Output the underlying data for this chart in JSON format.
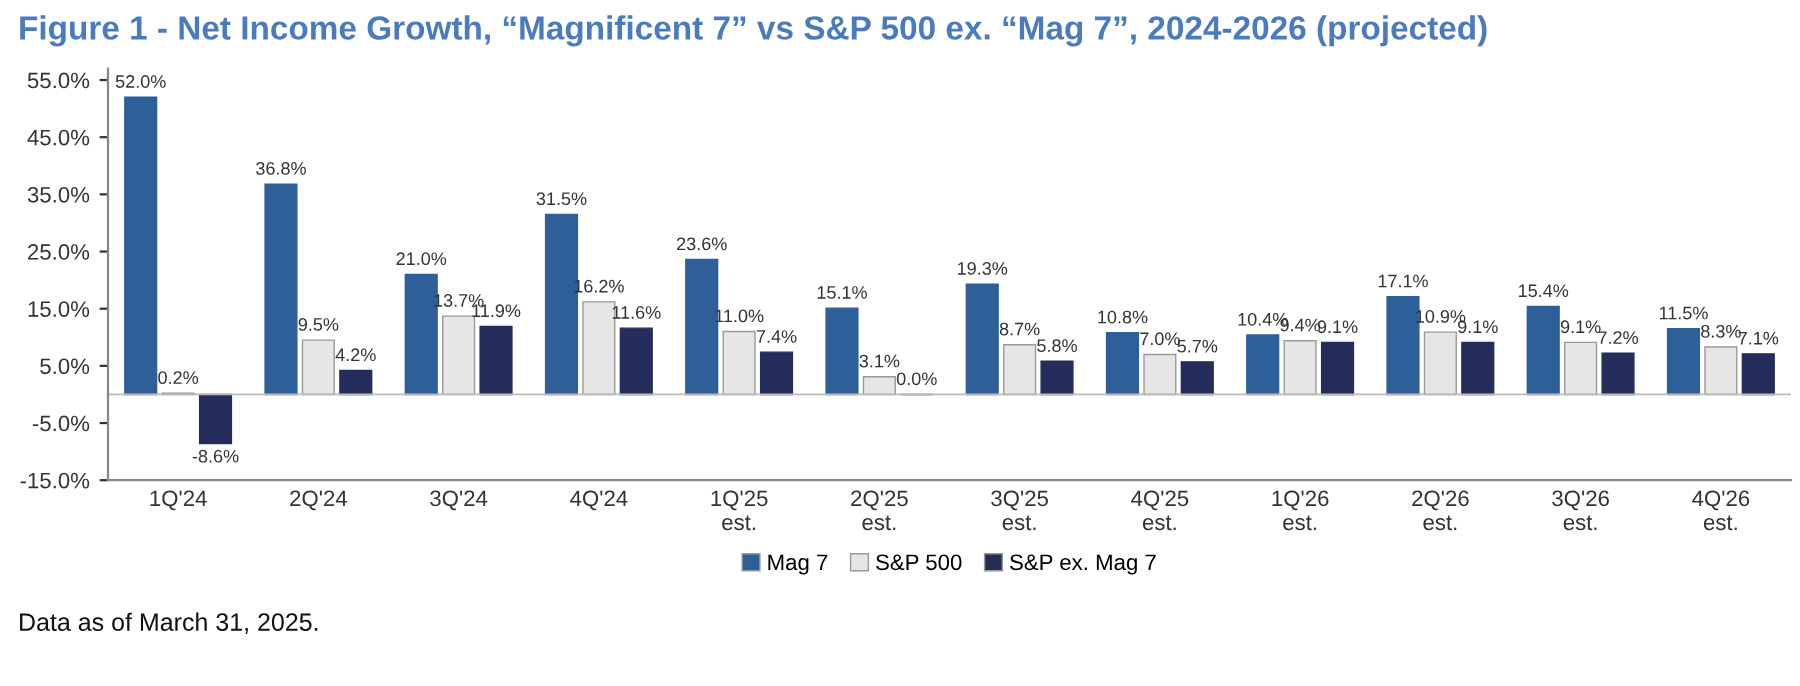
{
  "chart_data": {
    "type": "bar",
    "title": "Figure 1 - Net Income Growth, “Magnificent 7” vs S&P 500 ex. “Mag 7”, 2024-2026 (projected)",
    "categories": [
      "1Q'24",
      "2Q'24",
      "3Q'24",
      "4Q'24",
      "1Q'25\nest.",
      "2Q'25\nest.",
      "3Q'25\nest.",
      "4Q'25\nest.",
      "1Q'26\nest.",
      "2Q'26\nest.",
      "3Q'26\nest.",
      "4Q'26\nest."
    ],
    "series": [
      {
        "name": "Mag 7",
        "color": "#2e5f99",
        "values": [
          52.0,
          36.8,
          21.0,
          31.5,
          23.6,
          15.1,
          19.3,
          10.8,
          10.4,
          17.1,
          15.4,
          11.5
        ],
        "value_labels": [
          "52.0%",
          "36.8%",
          "21.0%",
          "31.5%",
          "23.6%",
          "15.1%",
          "19.3%",
          "10.8%",
          "10.4%",
          "17.1%",
          "15.4%",
          "11.5%"
        ]
      },
      {
        "name": "S&P 500",
        "color": "#e6e6e6",
        "values": [
          0.2,
          9.5,
          13.7,
          16.2,
          11.0,
          3.1,
          8.7,
          7.0,
          9.4,
          10.9,
          9.1,
          8.3
        ],
        "value_labels": [
          "0.2%",
          "9.5%",
          "13.7%",
          "16.2%",
          "11.0%",
          "3.1%",
          "8.7%",
          "7.0%",
          "9.4%",
          "10.9%",
          "9.1%",
          "8.3%"
        ]
      },
      {
        "name": "S&P ex. Mag 7",
        "color": "#252d5c",
        "values": [
          -8.6,
          4.2,
          11.9,
          11.6,
          7.4,
          0.0,
          5.8,
          5.7,
          9.1,
          9.1,
          7.2,
          7.1
        ],
        "value_labels": [
          "-8.6%",
          "4.2%",
          "11.9%",
          "11.6%",
          "7.4%",
          "0.0%",
          "5.8%",
          "5.7%",
          "9.1%",
          "9.1%",
          "7.2%",
          "7.1%"
        ]
      }
    ],
    "ylim": [
      -15,
      57
    ],
    "yticks": [
      {
        "value": -15,
        "label": "-15.0%"
      },
      {
        "value": -5,
        "label": "-5.0%"
      },
      {
        "value": 5,
        "label": "5.0%"
      },
      {
        "value": 15,
        "label": "15.0%"
      },
      {
        "value": 25,
        "label": "25.0%"
      },
      {
        "value": 35,
        "label": "35.0%"
      },
      {
        "value": 45,
        "label": "45.0%"
      },
      {
        "value": 55,
        "label": "55.0%"
      }
    ],
    "grid": false,
    "legend": "bottom",
    "annotations": [
      "Data as of March 31, 2025."
    ]
  }
}
